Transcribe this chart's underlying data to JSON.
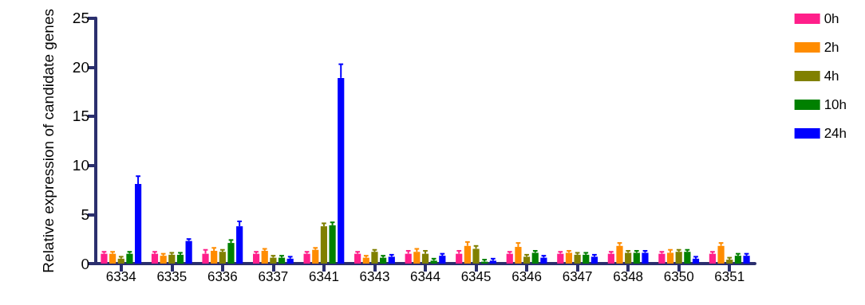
{
  "chart_data": {
    "type": "bar",
    "ylabel": "Relative expression of candidate genes",
    "categories": [
      "6334",
      "6335",
      "6336",
      "6337",
      "6341",
      "6343",
      "6344",
      "6345",
      "6346",
      "6347",
      "6348",
      "6350",
      "6351"
    ],
    "ylim": [
      0,
      25
    ],
    "yticks": [
      0,
      5,
      10,
      15,
      20,
      25
    ],
    "grid": false,
    "legend": "top right",
    "series": [
      {
        "name": "0h",
        "color": "#ff1f8a",
        "values": [
          1.0,
          1.0,
          1.0,
          1.0,
          1.0,
          1.0,
          1.0,
          1.0,
          1.0,
          1.0,
          1.0,
          1.0,
          1.0
        ],
        "errors": [
          [
            1.0,
            1.2
          ],
          [
            1.0,
            1.2
          ],
          [
            1.0,
            1.4
          ],
          [
            1.0,
            1.2
          ],
          [
            1.0,
            1.2
          ],
          [
            1.0,
            1.2
          ],
          [
            1.0,
            1.3
          ],
          [
            1.0,
            1.3
          ],
          [
            1.0,
            1.2
          ],
          [
            1.0,
            1.2
          ],
          [
            1.0,
            1.2
          ],
          [
            1.0,
            1.2
          ],
          [
            1.0,
            1.2
          ]
        ]
      },
      {
        "name": "2h",
        "color": "#ff8c00",
        "values": [
          1.0,
          0.8,
          1.3,
          1.3,
          1.4,
          0.6,
          1.2,
          1.8,
          1.7,
          1.1,
          1.8,
          1.1,
          1.8
        ],
        "errors": [
          [
            1.0,
            1.2
          ],
          [
            0.8,
            1.0
          ],
          [
            1.3,
            1.6
          ],
          [
            1.3,
            1.5
          ],
          [
            1.4,
            1.6
          ],
          [
            0.6,
            0.8
          ],
          [
            1.2,
            1.5
          ],
          [
            1.8,
            2.2
          ],
          [
            1.7,
            2.1
          ],
          [
            1.1,
            1.3
          ],
          [
            1.8,
            2.1
          ],
          [
            1.1,
            1.4
          ],
          [
            1.8,
            2.1
          ]
        ]
      },
      {
        "name": "4h",
        "color": "#808000",
        "values": [
          0.5,
          0.9,
          1.2,
          0.6,
          3.8,
          1.2,
          1.0,
          1.5,
          0.7,
          0.9,
          1.1,
          1.2,
          0.4
        ],
        "errors": [
          [
            0.5,
            0.7
          ],
          [
            0.9,
            1.1
          ],
          [
            1.2,
            1.4
          ],
          [
            0.6,
            0.8
          ],
          [
            3.8,
            4.1
          ],
          [
            1.2,
            1.4
          ],
          [
            1.0,
            1.3
          ],
          [
            1.5,
            1.8
          ],
          [
            0.7,
            0.9
          ],
          [
            0.9,
            1.1
          ],
          [
            1.1,
            1.3
          ],
          [
            1.2,
            1.4
          ],
          [
            0.4,
            0.6
          ]
        ]
      },
      {
        "name": "10h",
        "color": "#008000",
        "values": [
          1.0,
          0.9,
          2.1,
          0.6,
          3.9,
          0.6,
          0.3,
          0.2,
          1.1,
          0.9,
          1.1,
          1.2,
          0.8
        ],
        "errors": [
          [
            1.0,
            1.2
          ],
          [
            0.9,
            1.1
          ],
          [
            2.1,
            2.4
          ],
          [
            0.6,
            0.8
          ],
          [
            3.9,
            4.2
          ],
          [
            0.6,
            0.8
          ],
          [
            0.3,
            0.5
          ],
          [
            0.2,
            0.4
          ],
          [
            1.1,
            1.3
          ],
          [
            0.9,
            1.1
          ],
          [
            1.1,
            1.3
          ],
          [
            1.2,
            1.4
          ],
          [
            0.8,
            1.0
          ]
        ]
      },
      {
        "name": "24h",
        "color": "#0000ff",
        "values": [
          8.1,
          2.3,
          3.8,
          0.5,
          18.9,
          0.7,
          0.8,
          0.3,
          0.6,
          0.7,
          1.1,
          0.5,
          0.8
        ],
        "errors": [
          [
            8.1,
            8.9
          ],
          [
            2.3,
            2.5
          ],
          [
            3.8,
            4.3
          ],
          [
            0.5,
            0.7
          ],
          [
            18.9,
            20.3
          ],
          [
            0.7,
            0.9
          ],
          [
            0.8,
            1.0
          ],
          [
            0.3,
            0.5
          ],
          [
            0.6,
            0.8
          ],
          [
            0.7,
            0.9
          ],
          [
            1.1,
            1.3
          ],
          [
            0.5,
            0.7
          ],
          [
            0.8,
            1.0
          ]
        ]
      }
    ]
  }
}
